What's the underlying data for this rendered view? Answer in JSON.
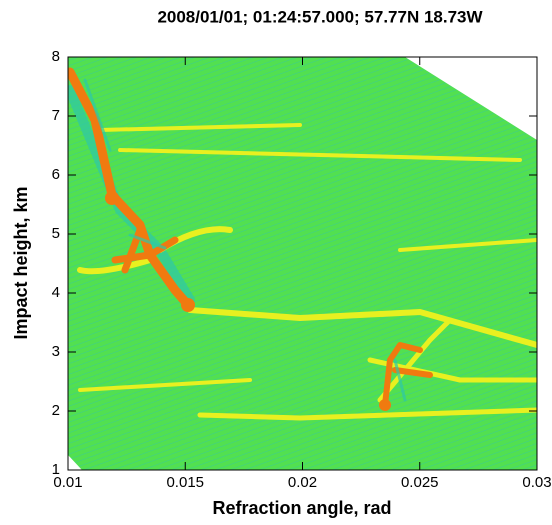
{
  "chart_data": {
    "type": "image",
    "title": "2008/01/01; 01:24:57.000; 57.77N  18.73W",
    "x_label": "Refraction angle, rad",
    "y_label": "Impact height, km",
    "xlim": [
      0.01,
      0.03
    ],
    "ylim": [
      1,
      8
    ],
    "xticks": [
      0.01,
      0.015,
      0.02,
      0.025,
      0.03
    ],
    "yticks": [
      1,
      2,
      3,
      4,
      5,
      6,
      7,
      8
    ]
  }
}
